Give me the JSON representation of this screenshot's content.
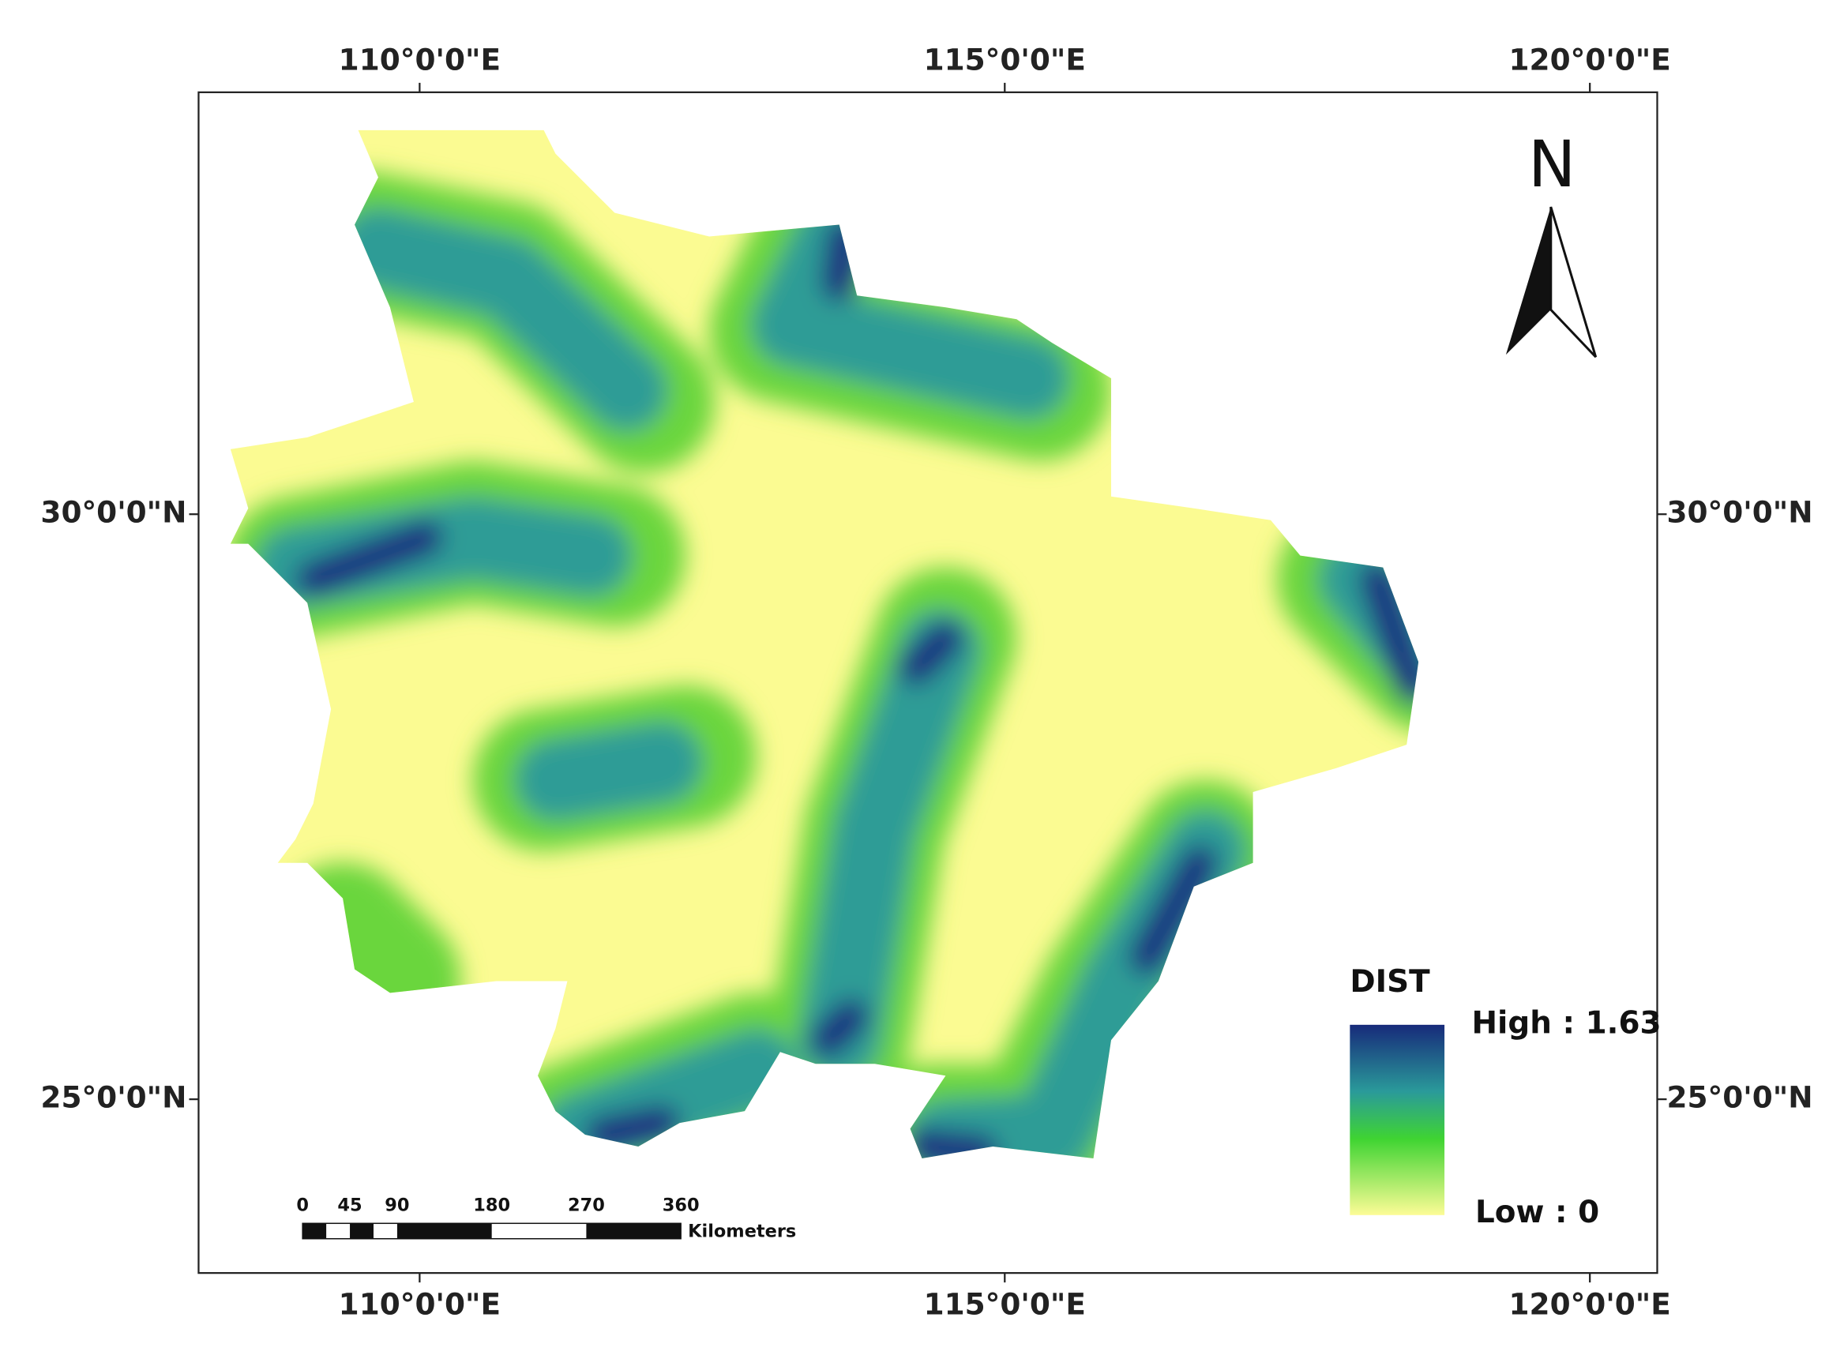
{
  "map": {
    "lon_labels": [
      "110°0'0\"E",
      "115°0'0\"E",
      "120°0'0\"E"
    ],
    "lat_labels": [
      "30°0'0\"N",
      "25°0'0\"N"
    ],
    "north_label": "N",
    "legend": {
      "title": "DIST",
      "high": "High : 1.63",
      "low": "Low : 0"
    },
    "scale_bar": {
      "ticks": [
        0,
        45,
        90,
        180,
        270,
        360
      ],
      "unit": "Kilometers"
    }
  }
}
